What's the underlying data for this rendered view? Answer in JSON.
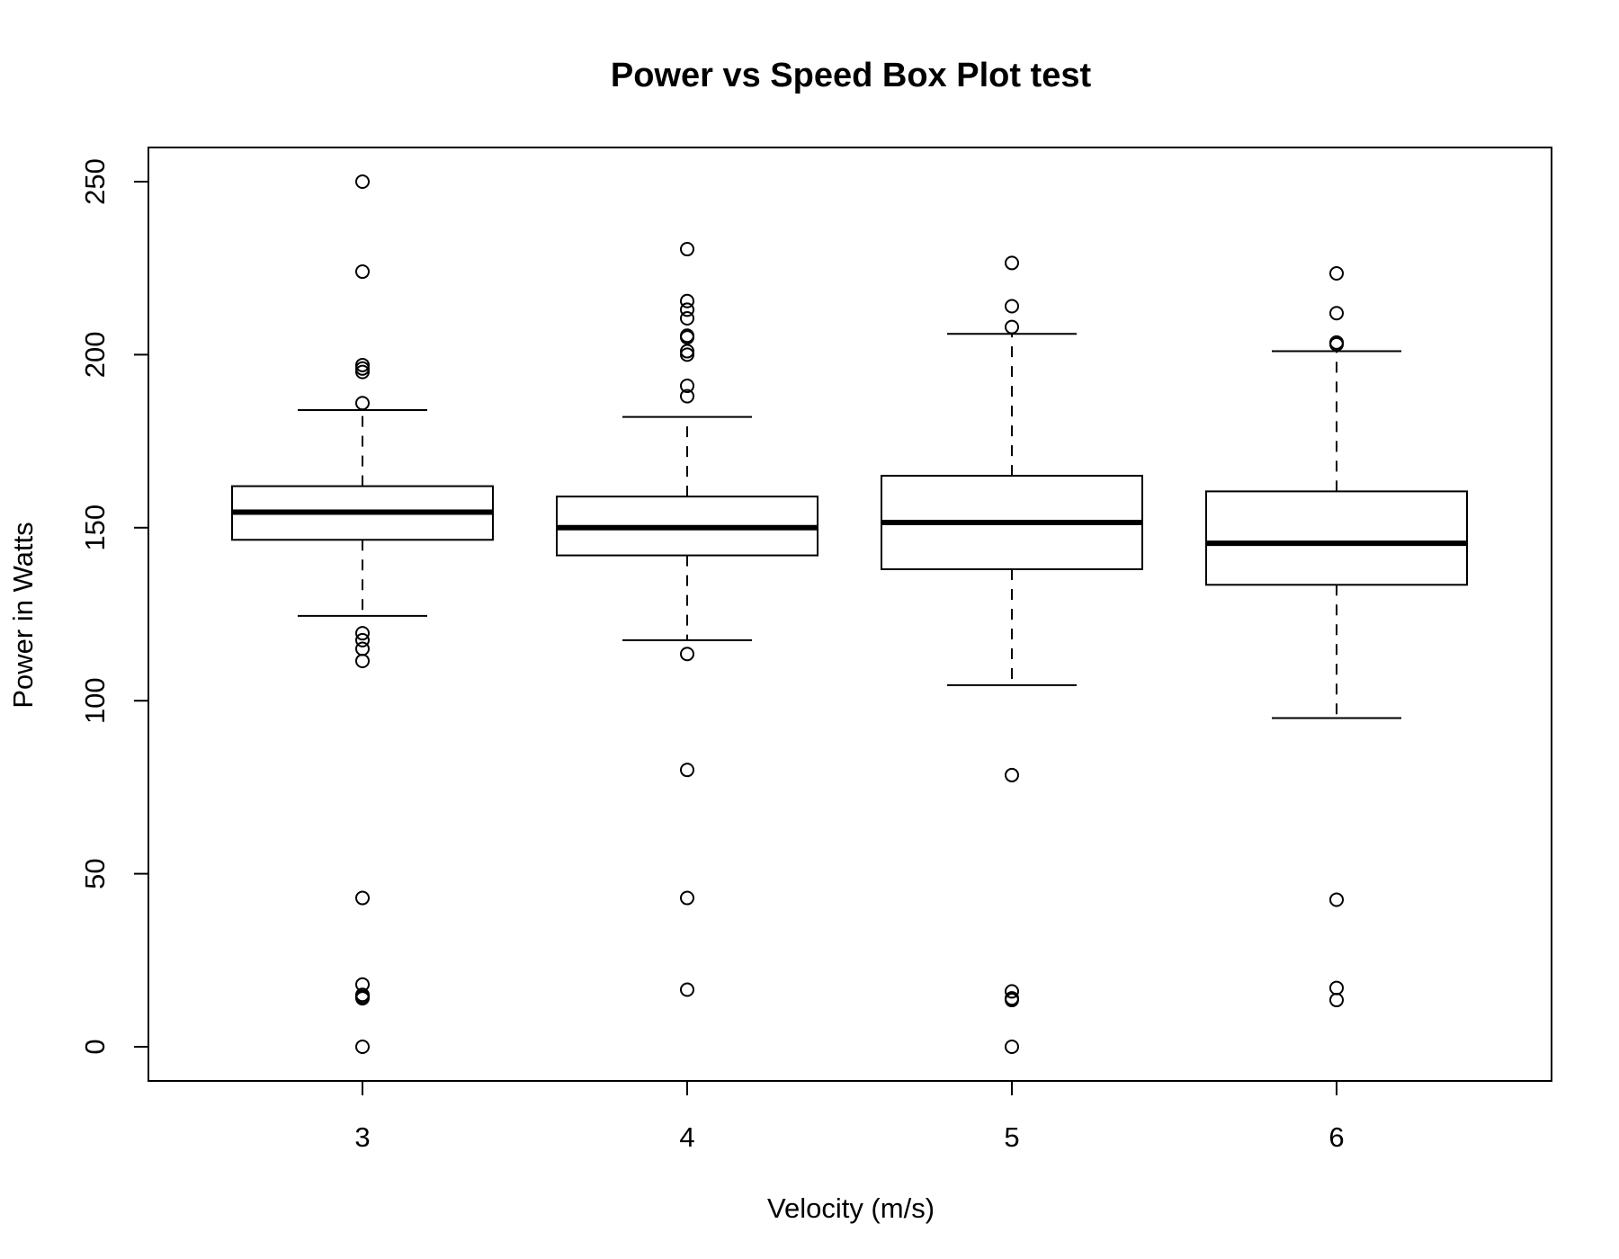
{
  "chart_data": {
    "type": "boxplot",
    "title": "Power vs Speed Box Plot test",
    "xlabel": "Velocity (m/s)",
    "ylabel": "Power in Watts",
    "categories": [
      "3",
      "4",
      "5",
      "6"
    ],
    "ylim": [
      -10,
      260
    ],
    "yticks": [
      0,
      50,
      100,
      150,
      200,
      250
    ],
    "grid": false,
    "legend": "none",
    "boxes": [
      {
        "category": "3",
        "whisker_low": 124.5,
        "q1": 146.5,
        "median": 154.5,
        "q3": 162,
        "whisker_high": 184,
        "outliers": [
          250,
          224,
          197,
          196,
          195,
          186,
          119.5,
          117.5,
          115,
          111.5,
          43,
          18,
          15,
          14.5,
          14,
          0
        ]
      },
      {
        "category": "4",
        "whisker_low": 117.5,
        "q1": 142,
        "median": 150,
        "q3": 159,
        "whisker_high": 182,
        "outliers": [
          230.5,
          215.5,
          213,
          210.5,
          205.5,
          205,
          201,
          200,
          191,
          188,
          113.5,
          80,
          43,
          16.5
        ]
      },
      {
        "category": "5",
        "whisker_low": 104.5,
        "q1": 138,
        "median": 151.5,
        "q3": 165,
        "whisker_high": 206,
        "outliers": [
          226.5,
          214,
          208,
          78.5,
          16,
          14,
          13.5,
          0
        ]
      },
      {
        "category": "6",
        "whisker_low": 95,
        "q1": 133.5,
        "median": 145.5,
        "q3": 160.5,
        "whisker_high": 201,
        "outliers": [
          223.5,
          212,
          203.5,
          203,
          42.5,
          17,
          13.5
        ]
      }
    ]
  }
}
